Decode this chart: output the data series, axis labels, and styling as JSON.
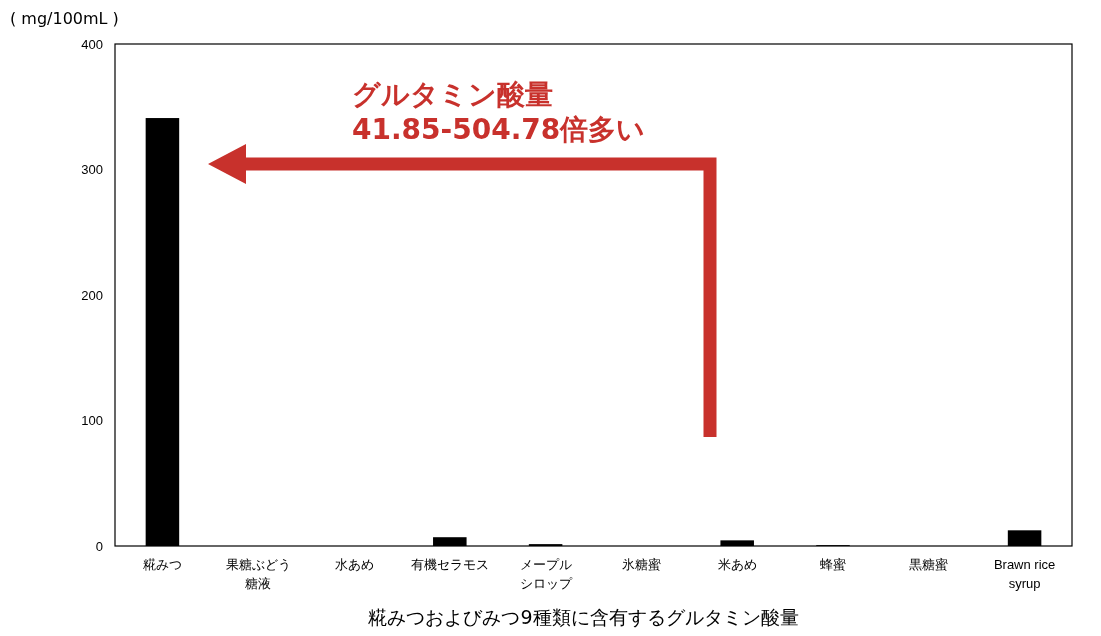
{
  "chart_data": {
    "type": "bar",
    "title": "糀みつおよびみつ9種類に含有するグルタミン酸量",
    "ylabel": "( mg/100mL )",
    "categories": [
      "糀みつ",
      "果糖ぶどう糖液",
      "水あめ",
      "有機セラモス",
      "メープルシロップ",
      "氷糖蜜",
      "米あめ",
      "蜂蜜",
      "黒糖蜜",
      "Brawn rice syrup"
    ],
    "values": [
      341,
      0,
      0,
      7,
      1.5,
      0,
      4.5,
      0.7,
      0,
      12.5
    ],
    "color": "#000000",
    "ylim": [
      0,
      400
    ],
    "yticks": [
      0,
      100,
      200,
      300,
      400
    ],
    "grid": false,
    "annotations": [
      "グルタミン酸量\n41.85-504.78倍多い"
    ]
  }
}
